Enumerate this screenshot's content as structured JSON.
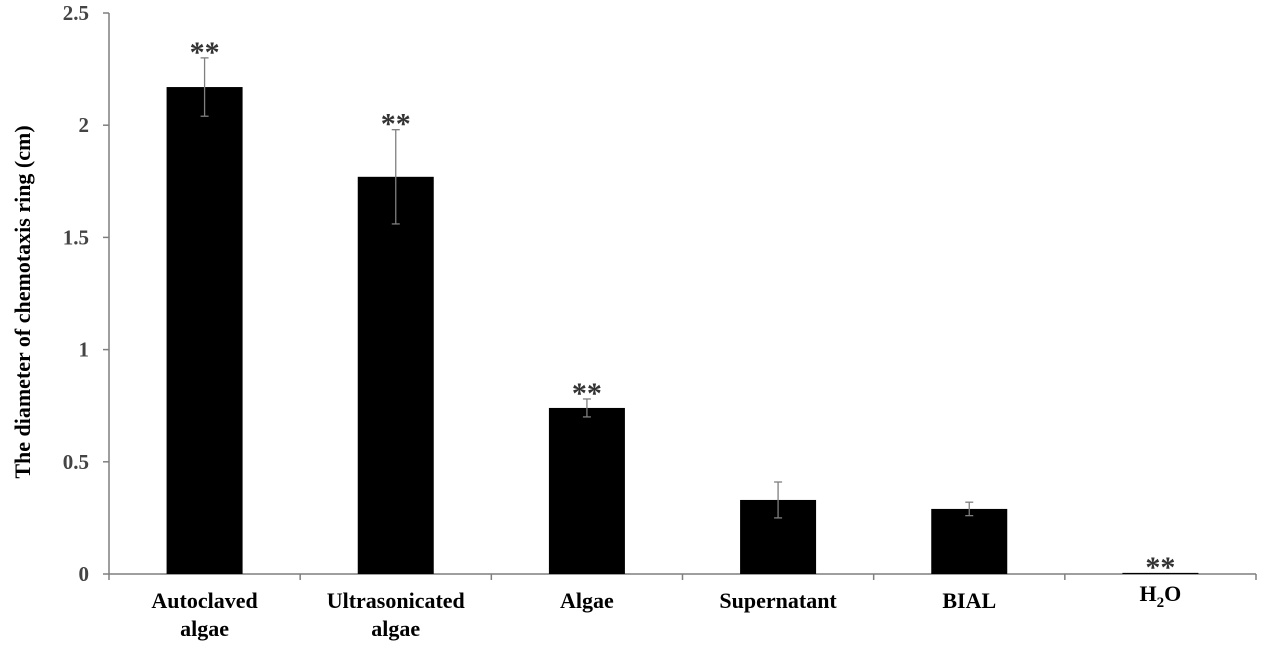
{
  "chart_data": {
    "type": "bar",
    "title": "",
    "xlabel": "",
    "ylabel": "The diameter of chemotaxis ring (cm)",
    "ylim": [
      0,
      2.5
    ],
    "yticks": [
      0,
      0.5,
      1,
      1.5,
      2,
      2.5
    ],
    "ytick_labels": [
      "0",
      "0.5",
      "1",
      "1.5",
      "2",
      "2.5"
    ],
    "grid": false,
    "legend": "none",
    "bar_color": "#000000",
    "categories": [
      {
        "lines": [
          "Autoclaved",
          "algae"
        ]
      },
      {
        "lines": [
          "Ultrasonicated",
          "algae"
        ]
      },
      {
        "lines": [
          "Algae"
        ]
      },
      {
        "lines": [
          "Supernatant"
        ]
      },
      {
        "lines": [
          "BIAL"
        ]
      },
      {
        "lines": [
          "H",
          "2",
          "O"
        ],
        "subscript": true
      }
    ],
    "values": [
      2.17,
      1.77,
      0.74,
      0.33,
      0.29,
      0.005
    ],
    "errors": [
      0.13,
      0.21,
      0.04,
      0.08,
      0.03,
      0.0
    ],
    "annotations": [
      "**",
      "**",
      "**",
      "",
      "",
      "**"
    ]
  }
}
